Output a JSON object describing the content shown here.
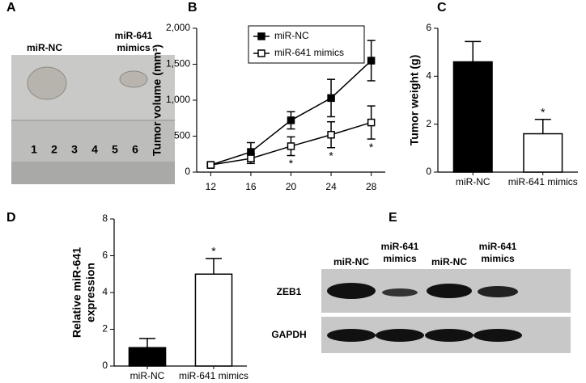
{
  "panel_labels": [
    "A",
    "B",
    "C",
    "D",
    "E"
  ],
  "panel_a": {
    "groups": [
      [
        "miR-NC"
      ],
      [
        "miR-641",
        "mimics"
      ]
    ],
    "ruler": [
      "1",
      "2",
      "3",
      "4",
      "5",
      "6"
    ]
  },
  "panel_e": {
    "columns": [
      [
        "miR-NC"
      ],
      [
        "miR-641",
        "mimics"
      ],
      [
        "miR-NC"
      ],
      [
        "miR-641",
        "mimics"
      ]
    ],
    "rows": [
      "ZEB1",
      "GAPDH"
    ]
  },
  "chart_data": [
    {
      "type": "line",
      "y_label": [
        "Tumor volume (mm³)"
      ],
      "x": [
        12,
        16,
        20,
        24,
        28
      ],
      "xlim": [
        10.6,
        29.4
      ],
      "xticks": [
        12,
        16,
        20,
        24,
        28
      ],
      "ylim": [
        0,
        2000
      ],
      "yticks": [
        0,
        500,
        {
          "value": 1000,
          "label": "1,000"
        },
        {
          "value": 1500,
          "label": "1,500"
        },
        {
          "value": 2000,
          "label": "2,000"
        }
      ],
      "legend": "upper left",
      "series": [
        {
          "name": "miR-NC",
          "color": "#000000",
          "marker_fill": "#000000",
          "values": [
            100,
            280,
            720,
            1030,
            1550
          ],
          "errors": [
            20,
            130,
            120,
            260,
            280
          ]
        },
        {
          "name": "miR-641 mimics",
          "color": "#000000",
          "marker_fill": "#ffffff",
          "values": [
            100,
            190,
            360,
            520,
            690
          ],
          "errors": [
            20,
            70,
            130,
            180,
            230
          ]
        }
      ],
      "annotations": [
        {
          "text": "*",
          "x": 20,
          "series": 1
        },
        {
          "text": "*",
          "x": 24,
          "series": 1
        },
        {
          "text": "*",
          "x": 28,
          "series": 1
        }
      ]
    },
    {
      "type": "bar",
      "y_label": [
        "Tumor weight (g)"
      ],
      "categories": [
        "miR-NC",
        "miR-641 mimics"
      ],
      "values": [
        4.6,
        1.6
      ],
      "errors": [
        0.85,
        0.6
      ],
      "colors": [
        "#000000",
        "#ffffff"
      ],
      "ylim": [
        0,
        6
      ],
      "yticks": [
        0,
        2,
        4,
        6
      ],
      "annotations": [
        {
          "text": "*",
          "category": 1
        }
      ]
    },
    {
      "type": "bar",
      "y_label": [
        "Relative miR-641",
        "expression"
      ],
      "categories": [
        "miR-NC",
        "miR-641 mimics"
      ],
      "values": [
        1.0,
        5.0
      ],
      "errors": [
        0.5,
        0.85
      ],
      "colors": [
        "#000000",
        "#ffffff"
      ],
      "ylim": [
        0,
        8
      ],
      "yticks": [
        0,
        2,
        4,
        6,
        8
      ],
      "annotations": [
        {
          "text": "*",
          "category": 1
        }
      ]
    }
  ]
}
